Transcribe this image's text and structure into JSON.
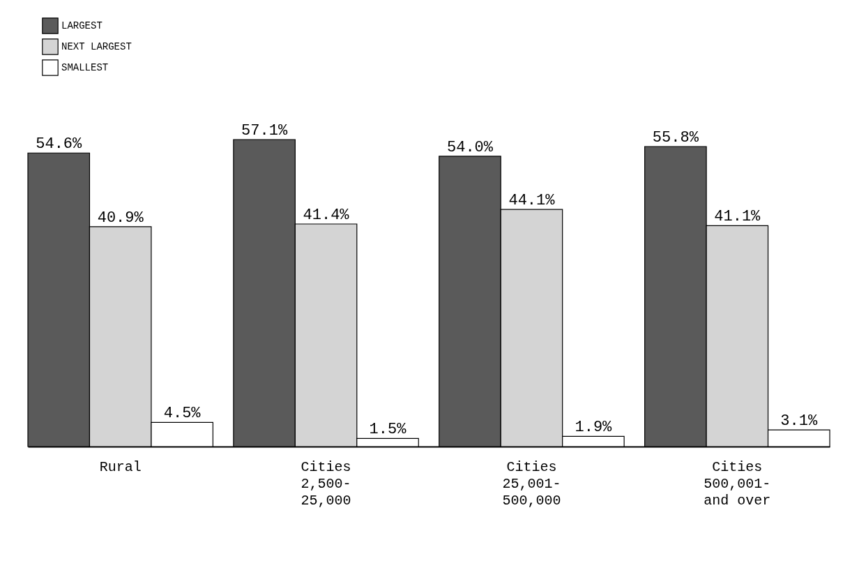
{
  "chart_data": {
    "type": "bar",
    "categories": [
      "Rural",
      "Cities\n2,500-\n25,000",
      "Cities\n25,001-\n500,000",
      "Cities\n500,001-\nand over"
    ],
    "series": [
      {
        "name": "LARGEST",
        "color": "#5a5a5a",
        "values": [
          54.6,
          57.1,
          54.0,
          55.8
        ],
        "value_labels": [
          "54.6%",
          "57.1%",
          "54.0%",
          "55.8%"
        ]
      },
      {
        "name": "NEXT LARGEST",
        "color": "#d4d4d4",
        "values": [
          40.9,
          41.4,
          44.1,
          41.1
        ],
        "value_labels": [
          "40.9%",
          "41.4%",
          "44.1%",
          "41.1%"
        ]
      },
      {
        "name": "SMALLEST",
        "color": "#ffffff",
        "values": [
          4.5,
          1.5,
          1.9,
          3.1
        ],
        "value_labels": [
          "4.5%",
          "1.5%",
          "1.9%",
          "3.1%"
        ]
      }
    ],
    "legend": "top left",
    "grid": false
  }
}
